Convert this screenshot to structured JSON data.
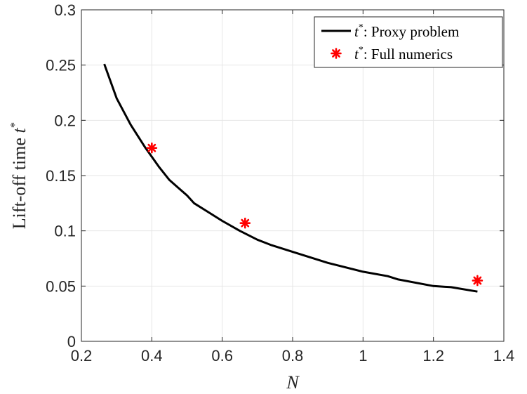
{
  "chart_data": {
    "type": "line",
    "xlabel": "N",
    "ylabel_prefix": "Lift-off time ",
    "ylabel_symbol": "t",
    "ylabel_sup": "*",
    "xlim": [
      0.2,
      1.4
    ],
    "ylim": [
      0,
      0.3
    ],
    "xticks": [
      "0.2",
      "0.4",
      "0.6",
      "0.8",
      "1",
      "1.2",
      "1.4"
    ],
    "yticks": [
      "0",
      "0.05",
      "0.1",
      "0.15",
      "0.2",
      "0.25",
      "0.3"
    ],
    "grid": true,
    "legend_position": "top-right",
    "series": [
      {
        "name": "t*: Proxy problem",
        "legend_symbol": "t",
        "legend_sup": "*",
        "legend_text": ": Proxy problem",
        "style": "line",
        "color": "#000000",
        "x": [
          0.265,
          0.3,
          0.34,
          0.38,
          0.42,
          0.45,
          0.5,
          0.52,
          0.56,
          0.6,
          0.65,
          0.7,
          0.74,
          0.8,
          0.9,
          1.0,
          1.07,
          1.1,
          1.2,
          1.25,
          1.325
        ],
        "y": [
          0.251,
          0.22,
          0.196,
          0.176,
          0.158,
          0.146,
          0.132,
          0.125,
          0.117,
          0.109,
          0.1,
          0.092,
          0.087,
          0.081,
          0.071,
          0.063,
          0.059,
          0.056,
          0.05,
          0.049,
          0.045
        ]
      },
      {
        "name": "t*: Full numerics",
        "legend_symbol": "t",
        "legend_sup": "*",
        "legend_text": ": Full numerics",
        "style": "marker",
        "marker": "asterisk",
        "color": "#ff0000",
        "x": [
          0.4,
          0.665,
          1.325
        ],
        "y": [
          0.175,
          0.107,
          0.055
        ]
      }
    ]
  }
}
